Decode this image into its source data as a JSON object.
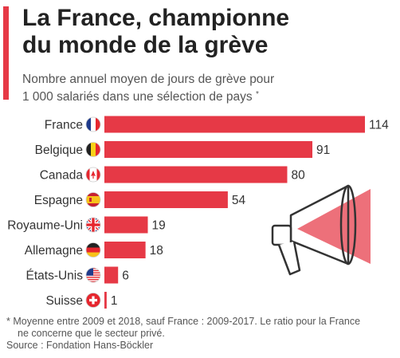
{
  "header": {
    "title_lines": [
      "La France, championne",
      "du monde de la grève"
    ],
    "subtitle_lines": [
      "Nombre annuel moyen de jours de grève pour",
      "1 000 salariés dans une sélection de pays"
    ],
    "subtitle_mark": "*"
  },
  "footer": {
    "note_lines": [
      "* Moyenne entre 2009 et 2018, sauf France : 2009-2017. Le ratio pour la France",
      "ne concerne que le secteur privé."
    ],
    "source": "Source : Fondation Hans-Böckler"
  },
  "colors": {
    "bar": "#e63946",
    "accent": "#e63946",
    "megaphone": "#e63946"
  },
  "chart_data": {
    "type": "bar",
    "orientation": "horizontal",
    "categories": [
      "France",
      "Belgique",
      "Canada",
      "Espagne",
      "Royaume-Uni",
      "Allemagne",
      "États-Unis",
      "Suisse"
    ],
    "values": [
      114,
      91,
      80,
      54,
      19,
      18,
      6,
      1
    ],
    "icons": [
      "flag-france-icon",
      "flag-belgium-icon",
      "flag-canada-icon",
      "flag-spain-icon",
      "flag-uk-icon",
      "flag-germany-icon",
      "flag-usa-icon",
      "flag-switzerland-icon"
    ],
    "xlim": [
      0,
      114
    ],
    "grid": false,
    "legend": "none"
  }
}
